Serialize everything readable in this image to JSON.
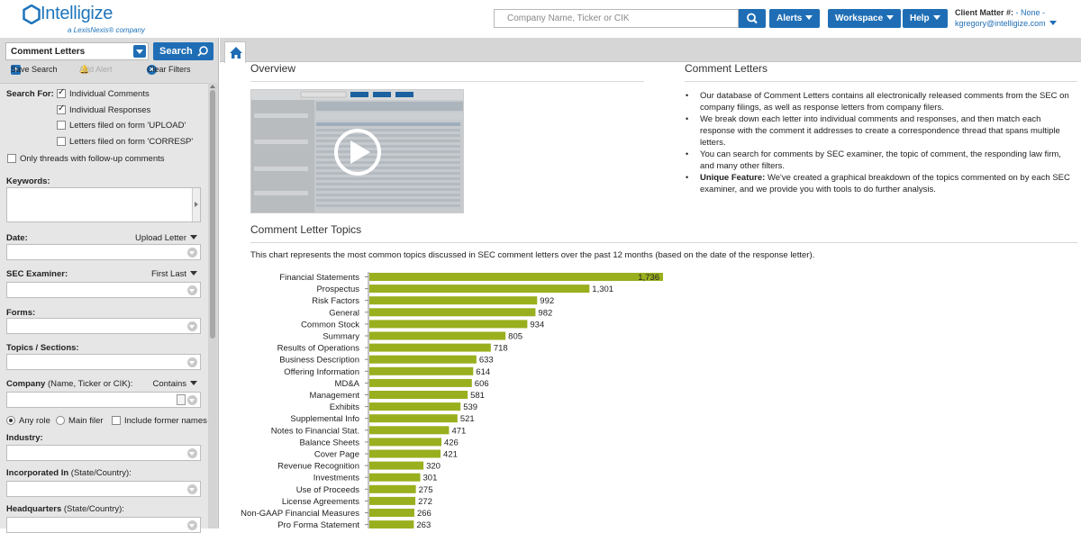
{
  "header": {
    "brand": "Intelligize",
    "tagline": "a LexisNexis® company",
    "search_placeholder": "Company Name, Ticker or CIK",
    "buttons": {
      "alerts": "Alerts",
      "workspace": "Workspace",
      "help": "Help"
    },
    "client_matter_label": "Client Matter #:",
    "client_matter_value": "- None -",
    "user": "kgregory@intelligize.com"
  },
  "left": {
    "doc_type": "Comment Letters",
    "search_label": "Search",
    "actions": {
      "save": "Save Search",
      "add_alert": "Add Alert",
      "clear": "Clear Filters"
    },
    "search_for_label": "Search For:",
    "search_for": [
      {
        "label": "Individual Comments",
        "checked": true
      },
      {
        "label": "Individual Responses",
        "checked": true
      },
      {
        "label": "Letters filed on form 'UPLOAD'",
        "checked": false
      },
      {
        "label": "Letters filed on form 'CORRESP'",
        "checked": false
      }
    ],
    "followup": "Only threads with follow-up comments",
    "keywords": "Keywords:",
    "date": "Date:",
    "date_mode": "Upload Letter",
    "examiner": "SEC Examiner:",
    "examiner_mode": "First Last",
    "forms": "Forms:",
    "topics": "Topics / Sections:",
    "company": "Company",
    "company_hint": "(Name, Ticker or CIK):",
    "company_mode": "Contains",
    "roles": {
      "any": "Any role",
      "main": "Main filer",
      "former": "Include former names"
    },
    "industry": "Industry:",
    "incorporated": "Incorporated In",
    "incorporated_hint": "(State/Country):",
    "headquarters": "Headquarters",
    "headquarters_hint": "(State/Country):"
  },
  "main": {
    "overview_title": "Overview",
    "comment_letters_title": "Comment Letters",
    "bullet_1": "Our database of Comment Letters contains all electronically released comments from the SEC on company filings, as well as response letters from company filers.",
    "bullet_2": "We break down each letter into individual comments and responses, and then match each response with the comment it addresses to create a correspondence thread that spans multiple letters.",
    "bullet_3": "You can search for comments by SEC examiner, the topic of comment, the responding law firm, and many other filters.",
    "bullet_4_bold": "Unique Feature:",
    "bullet_4": " We've created a graphical breakdown of the topics commented on by each SEC examiner, and we provide you with tools to do further analysis.",
    "topics_title": "Comment Letter Topics",
    "chart_desc": "This chart represents the most common topics discussed in SEC comment letters over the past 12 months (based on the date of the response letter)."
  },
  "colors": {
    "accent": "#1f6eb5",
    "bar": "#9aaf1e"
  },
  "chart_data": {
    "type": "bar",
    "orientation": "horizontal",
    "categories": [
      "Financial Statements",
      "Prospectus",
      "Risk Factors",
      "General",
      "Common Stock",
      "Summary",
      "Results of Operations",
      "Business Description",
      "Offering Information",
      "MD&A",
      "Management",
      "Exhibits",
      "Supplemental Info",
      "Notes to Financial Stat.",
      "Balance Sheets",
      "Cover Page",
      "Revenue Recognition",
      "Investments",
      "Use of Proceeds",
      "License Agreements",
      "Non-GAAP Financial Measures",
      "Pro Forma Statement"
    ],
    "values": [
      1736,
      1301,
      992,
      982,
      934,
      805,
      718,
      633,
      614,
      606,
      581,
      539,
      521,
      471,
      426,
      421,
      320,
      301,
      275,
      272,
      266,
      263
    ],
    "labels": [
      "1,736",
      "1,301",
      "992",
      "982",
      "934",
      "805",
      "718",
      "633",
      "614",
      "606",
      "581",
      "539",
      "521",
      "471",
      "426",
      "421",
      "320",
      "301",
      "275",
      "272",
      "266",
      "263"
    ],
    "xlim": [
      0,
      1736
    ]
  }
}
